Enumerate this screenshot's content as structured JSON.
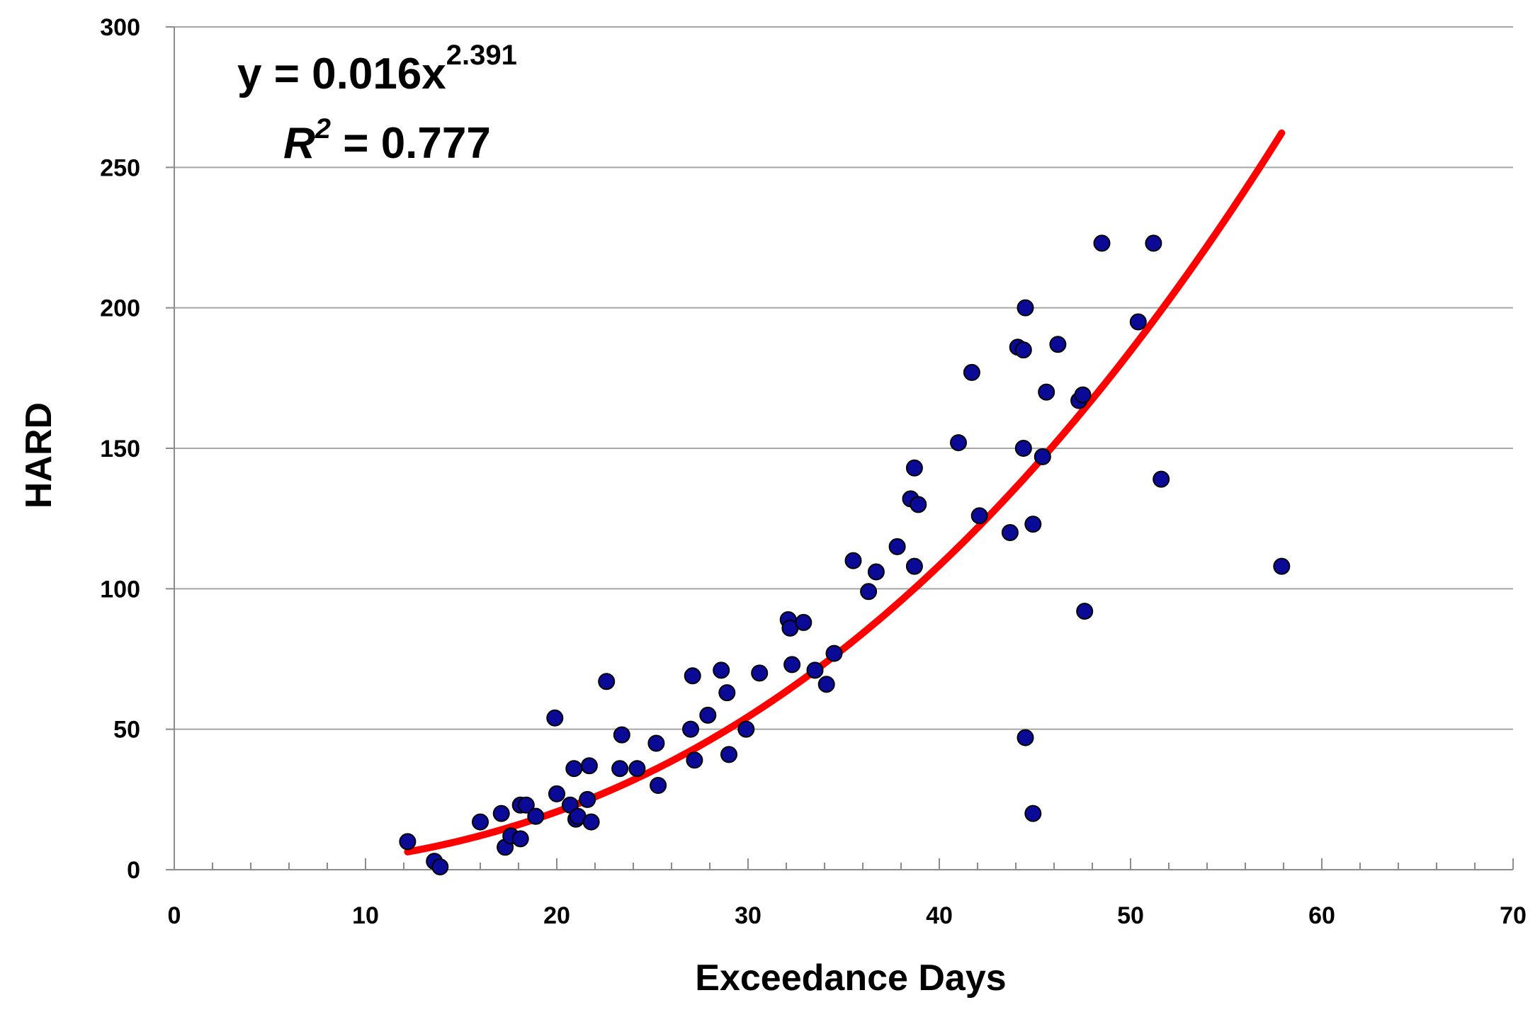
{
  "chart_data": {
    "type": "scatter",
    "title": "",
    "xlabel": "Exceedance Days",
    "ylabel": "HARD",
    "xlim": [
      0,
      70
    ],
    "ylim": [
      0,
      300
    ],
    "xticks": [
      0,
      10,
      20,
      30,
      40,
      50,
      60,
      70
    ],
    "yticks": [
      0,
      50,
      100,
      150,
      200,
      250,
      300
    ],
    "xtick_labels": [
      "0",
      "10",
      "20",
      "30",
      "40",
      "50",
      "60",
      "70"
    ],
    "ytick_labels": [
      "0",
      "50",
      "100",
      "150",
      "200",
      "250",
      "300"
    ],
    "grid": "horizontal",
    "equation": {
      "prefix": "y = 0.016x",
      "exponent": "2.391",
      "r2_symbol": "R",
      "r2_power": "2",
      "r2_value": " = 0.777"
    },
    "trendline": {
      "type": "power",
      "coefficient": 0.016,
      "exponent": 2.391,
      "x_range": [
        12.2,
        57.9
      ],
      "color": "#ff0000"
    },
    "marker_color": "#0a0a96",
    "series": [
      {
        "name": "HARD",
        "points": [
          [
            12.2,
            10
          ],
          [
            13.6,
            3
          ],
          [
            13.9,
            1
          ],
          [
            16.0,
            17
          ],
          [
            17.1,
            20
          ],
          [
            17.3,
            8
          ],
          [
            17.6,
            12
          ],
          [
            18.1,
            23
          ],
          [
            18.1,
            11
          ],
          [
            18.4,
            23
          ],
          [
            18.9,
            19
          ],
          [
            19.9,
            54
          ],
          [
            20.0,
            27
          ],
          [
            20.7,
            23
          ],
          [
            20.9,
            36
          ],
          [
            21.0,
            18
          ],
          [
            21.1,
            19
          ],
          [
            21.6,
            25
          ],
          [
            21.7,
            37
          ],
          [
            21.8,
            17
          ],
          [
            22.6,
            67
          ],
          [
            23.3,
            36
          ],
          [
            23.4,
            48
          ],
          [
            24.2,
            36
          ],
          [
            25.2,
            45
          ],
          [
            25.3,
            30
          ],
          [
            27.0,
            50
          ],
          [
            27.1,
            69
          ],
          [
            27.2,
            39
          ],
          [
            27.9,
            55
          ],
          [
            28.6,
            71
          ],
          [
            28.9,
            63
          ],
          [
            29.0,
            41
          ],
          [
            29.9,
            50
          ],
          [
            30.6,
            70
          ],
          [
            32.1,
            89
          ],
          [
            32.2,
            86
          ],
          [
            32.3,
            73
          ],
          [
            32.9,
            88
          ],
          [
            33.5,
            71
          ],
          [
            34.1,
            66
          ],
          [
            34.5,
            77
          ],
          [
            35.5,
            110
          ],
          [
            36.3,
            99
          ],
          [
            36.7,
            106
          ],
          [
            37.8,
            115
          ],
          [
            38.5,
            132
          ],
          [
            38.7,
            143
          ],
          [
            38.7,
            108
          ],
          [
            38.9,
            130
          ],
          [
            41.0,
            152
          ],
          [
            41.7,
            177
          ],
          [
            42.1,
            126
          ],
          [
            43.7,
            120
          ],
          [
            44.1,
            186
          ],
          [
            44.4,
            185
          ],
          [
            44.4,
            150
          ],
          [
            44.5,
            200
          ],
          [
            44.5,
            47
          ],
          [
            44.9,
            123
          ],
          [
            44.9,
            20
          ],
          [
            45.4,
            147
          ],
          [
            45.6,
            170
          ],
          [
            46.2,
            187
          ],
          [
            47.3,
            167
          ],
          [
            47.5,
            169
          ],
          [
            47.6,
            92
          ],
          [
            48.5,
            223
          ],
          [
            50.4,
            195
          ],
          [
            51.2,
            223
          ],
          [
            51.6,
            139
          ],
          [
            57.9,
            108
          ]
        ]
      }
    ]
  }
}
